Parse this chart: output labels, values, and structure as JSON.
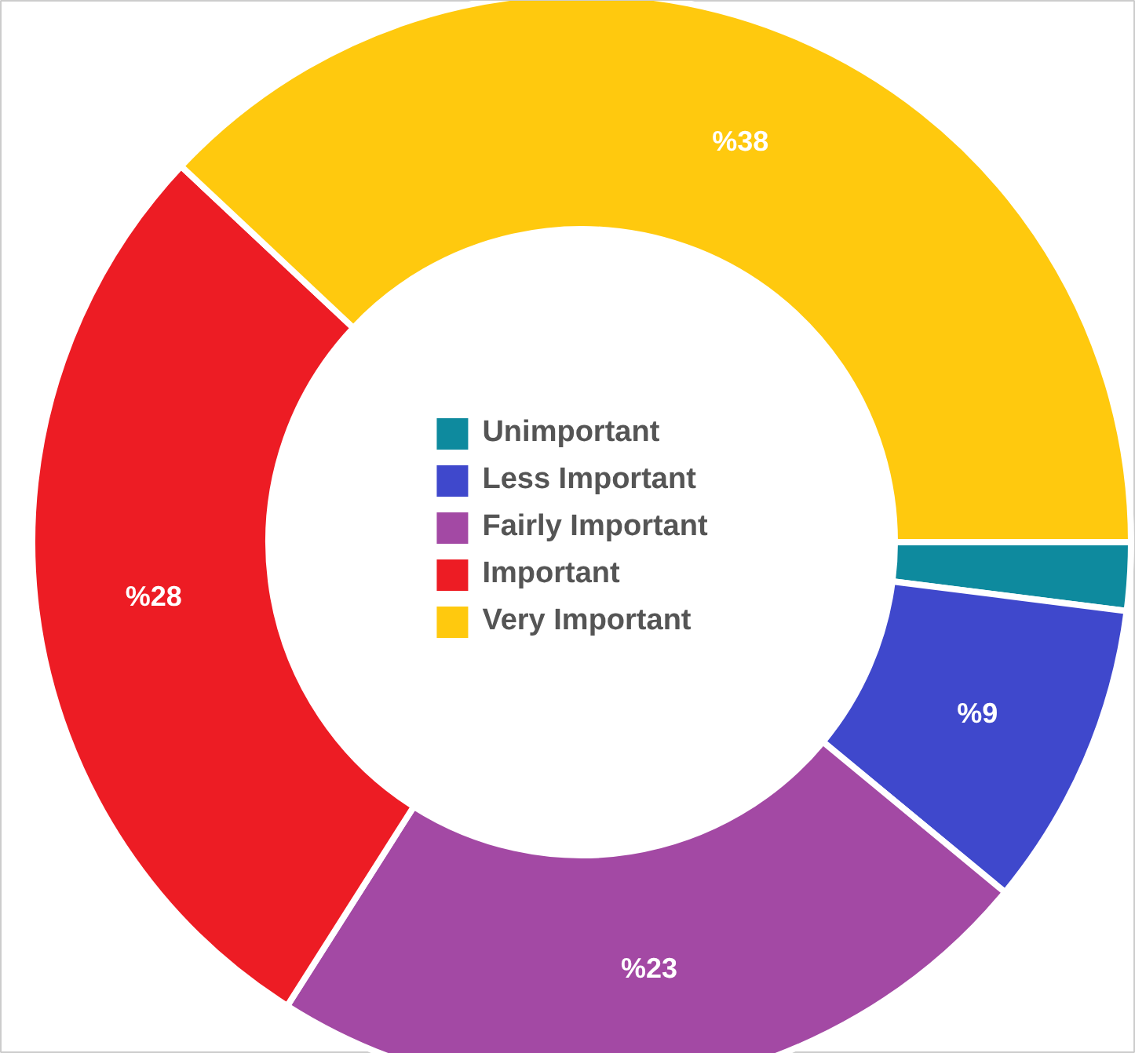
{
  "chart_data": {
    "type": "donut",
    "categories": [
      "Unimportant",
      "Less Important",
      "Fairly Important",
      "Important",
      "Very Important"
    ],
    "values": [
      2,
      9,
      23,
      28,
      38
    ],
    "colors": [
      "#0e8a9e",
      "#3f48cc",
      "#a349a4",
      "#ed1c24",
      "#ffc90e"
    ],
    "value_labels": [
      null,
      "%9",
      "%23",
      "%28",
      "%38"
    ],
    "legend": "center"
  }
}
